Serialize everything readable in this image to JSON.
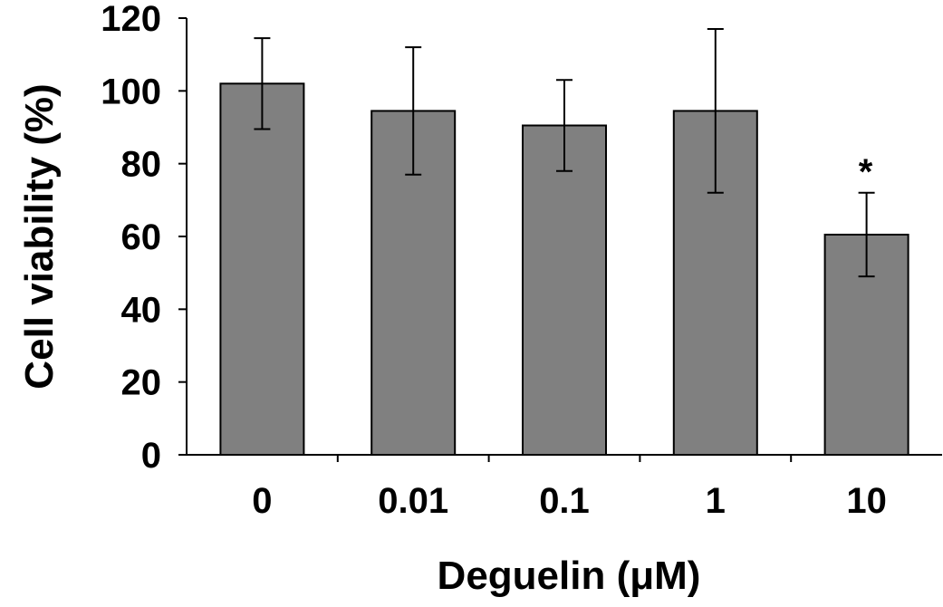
{
  "chart_data": {
    "type": "bar",
    "categories": [
      "0",
      "0.01",
      "0.1",
      "1",
      "10"
    ],
    "values": [
      102,
      94.5,
      90.5,
      94.5,
      60.5
    ],
    "errors": [
      12.5,
      17.5,
      12.5,
      22.5,
      11.5
    ],
    "annotations": [
      "",
      "",
      "",
      "",
      "*"
    ],
    "xlabel": "Deguelin (μM)",
    "ylabel": "Cell viability (%)",
    "ylim": [
      0,
      120
    ],
    "yticks": [
      0,
      20,
      40,
      60,
      80,
      100,
      120
    ],
    "bar_color": "#808080",
    "grid": false
  }
}
